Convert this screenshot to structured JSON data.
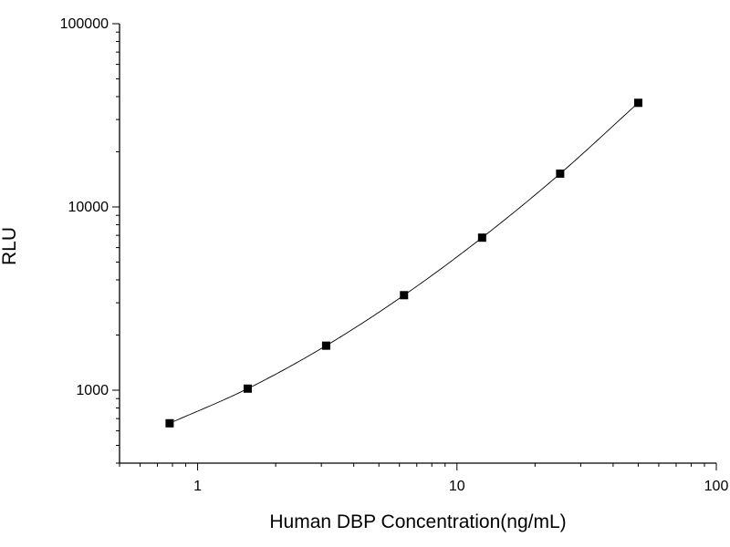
{
  "chart_data": {
    "type": "scatter",
    "title": "",
    "xlabel": "Human DBP Concentration(ng/mL)",
    "ylabel": "RLU",
    "x_scale": "log",
    "y_scale": "log",
    "xlim": [
      0.5,
      100
    ],
    "ylim": [
      400,
      100000
    ],
    "x_ticks": [
      {
        "value": 1,
        "label": "1"
      },
      {
        "value": 10,
        "label": "10"
      },
      {
        "value": 100,
        "label": "100"
      }
    ],
    "y_ticks": [
      {
        "value": 1000,
        "label": "1000"
      },
      {
        "value": 10000,
        "label": "10000"
      },
      {
        "value": 100000,
        "label": "100000"
      }
    ],
    "grid": false,
    "legend": "none",
    "marker": "square",
    "fit_line": true,
    "colors": {
      "marker": "#000000",
      "line": "#000000",
      "axis": "#000000"
    },
    "series": [
      {
        "x": [
          0.78,
          1.56,
          3.13,
          6.25,
          12.5,
          25,
          50
        ],
        "y": [
          660,
          1020,
          1750,
          3300,
          6800,
          15200,
          37000
        ]
      }
    ]
  }
}
